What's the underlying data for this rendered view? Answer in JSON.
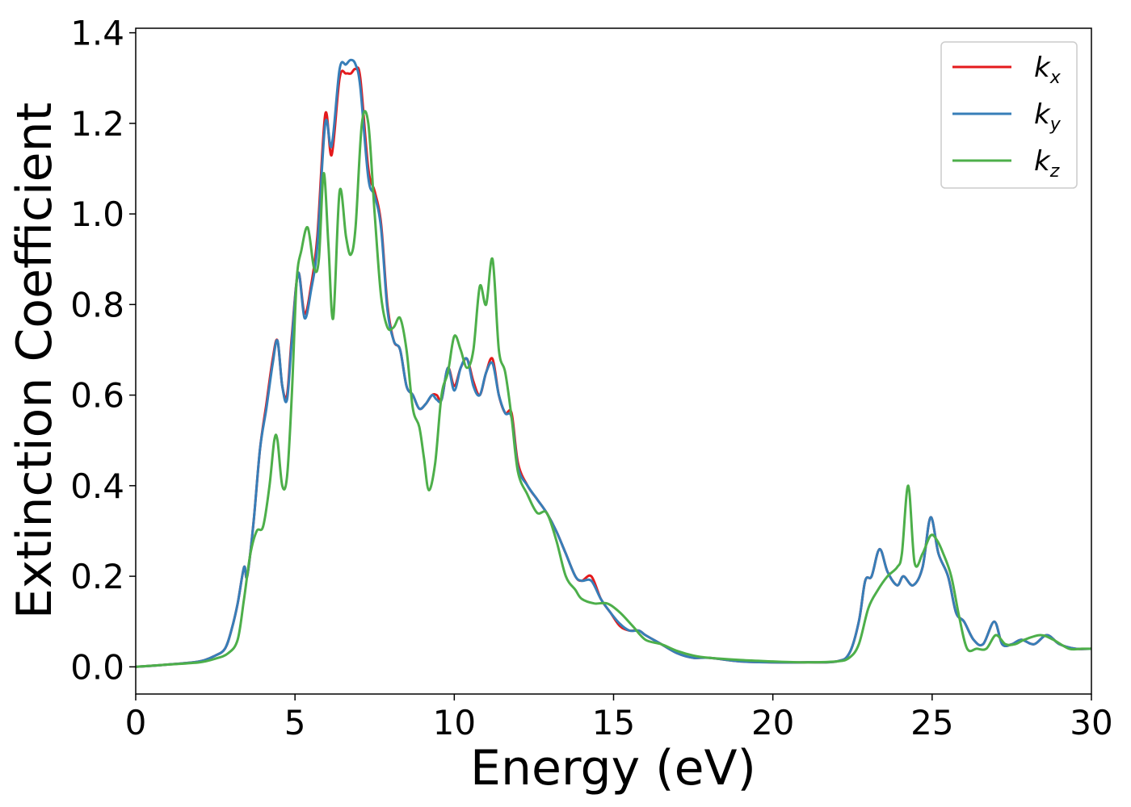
{
  "chart_data": {
    "type": "line",
    "xlabel": "Energy (eV)",
    "ylabel": "Extinction Coefficient",
    "xlim": [
      0,
      30
    ],
    "ylim": [
      -0.06,
      1.41
    ],
    "xticks": [
      "0",
      "5",
      "10",
      "15",
      "20",
      "25",
      "30"
    ],
    "yticks": [
      "0.0",
      "0.2",
      "0.4",
      "0.6",
      "0.8",
      "1.0",
      "1.2",
      "1.4"
    ],
    "grid": false,
    "legend_position": "top-right",
    "series": [
      {
        "name": "k",
        "subscript": "x",
        "color": "#e41a1c",
        "x": [
          0,
          1,
          2,
          2.5,
          2.8,
          3,
          3.2,
          3.4,
          3.5,
          3.7,
          3.9,
          4.1,
          4.3,
          4.45,
          4.6,
          4.75,
          4.9,
          5.1,
          5.3,
          5.5,
          5.7,
          5.95,
          6.15,
          6.4,
          6.6,
          6.75,
          6.9,
          7.05,
          7.3,
          7.5,
          7.7,
          7.9,
          8.1,
          8.3,
          8.5,
          8.7,
          8.9,
          9.1,
          9.3,
          9.45,
          9.6,
          9.8,
          10,
          10.2,
          10.4,
          10.6,
          10.8,
          11,
          11.2,
          11.4,
          11.6,
          11.8,
          12,
          12.3,
          12.6,
          12.9,
          13.2,
          13.5,
          13.8,
          14,
          14.3,
          14.6,
          14.9,
          15.2,
          15.5,
          15.8,
          16,
          16.5,
          17,
          17.5,
          18,
          19,
          20,
          21,
          22,
          22.4,
          22.7,
          22.9,
          23.1,
          23.35,
          23.6,
          23.9,
          24.1,
          24.4,
          24.7,
          24.95,
          25.2,
          25.5,
          25.75,
          26,
          26.3,
          26.6,
          26.95,
          27.2,
          27.5,
          27.8,
          28.2,
          28.6,
          29,
          29.5,
          30
        ],
        "values": [
          0,
          0.005,
          0.012,
          0.025,
          0.04,
          0.08,
          0.14,
          0.22,
          0.2,
          0.32,
          0.48,
          0.58,
          0.68,
          0.72,
          0.62,
          0.6,
          0.73,
          0.87,
          0.78,
          0.84,
          0.95,
          1.22,
          1.13,
          1.3,
          1.31,
          1.31,
          1.32,
          1.3,
          1.1,
          1.05,
          0.98,
          0.8,
          0.72,
          0.7,
          0.62,
          0.6,
          0.57,
          0.58,
          0.6,
          0.6,
          0.59,
          0.66,
          0.62,
          0.66,
          0.68,
          0.63,
          0.6,
          0.65,
          0.68,
          0.6,
          0.56,
          0.56,
          0.45,
          0.4,
          0.37,
          0.34,
          0.3,
          0.25,
          0.2,
          0.19,
          0.2,
          0.15,
          0.12,
          0.09,
          0.08,
          0.08,
          0.07,
          0.05,
          0.03,
          0.02,
          0.02,
          0.012,
          0.01,
          0.01,
          0.012,
          0.03,
          0.1,
          0.19,
          0.2,
          0.26,
          0.21,
          0.18,
          0.2,
          0.18,
          0.22,
          0.33,
          0.25,
          0.2,
          0.12,
          0.1,
          0.06,
          0.05,
          0.1,
          0.05,
          0.05,
          0.06,
          0.05,
          0.07,
          0.05,
          0.04,
          0.04
        ]
      },
      {
        "name": "k",
        "subscript": "y",
        "color": "#377eb8",
        "x": [
          0,
          1,
          2,
          2.5,
          2.8,
          3,
          3.2,
          3.4,
          3.5,
          3.7,
          3.9,
          4.1,
          4.3,
          4.45,
          4.6,
          4.75,
          4.9,
          5.1,
          5.3,
          5.5,
          5.7,
          5.95,
          6.15,
          6.4,
          6.6,
          6.75,
          6.9,
          7.05,
          7.3,
          7.5,
          7.7,
          7.9,
          8.1,
          8.3,
          8.5,
          8.7,
          8.9,
          9.1,
          9.3,
          9.45,
          9.6,
          9.8,
          10,
          10.2,
          10.4,
          10.6,
          10.8,
          11,
          11.2,
          11.4,
          11.6,
          11.8,
          12,
          12.3,
          12.6,
          12.9,
          13.2,
          13.5,
          13.8,
          14,
          14.3,
          14.6,
          14.9,
          15.2,
          15.5,
          15.8,
          16,
          16.5,
          17,
          17.5,
          18,
          19,
          20,
          21,
          22,
          22.4,
          22.7,
          22.9,
          23.1,
          23.35,
          23.6,
          23.9,
          24.1,
          24.4,
          24.7,
          24.95,
          25.2,
          25.5,
          25.75,
          26,
          26.3,
          26.6,
          26.95,
          27.2,
          27.5,
          27.8,
          28.2,
          28.6,
          29,
          29.5,
          30
        ],
        "values": [
          0,
          0.005,
          0.012,
          0.025,
          0.04,
          0.08,
          0.14,
          0.22,
          0.2,
          0.32,
          0.48,
          0.57,
          0.67,
          0.72,
          0.62,
          0.59,
          0.72,
          0.87,
          0.77,
          0.83,
          0.93,
          1.2,
          1.15,
          1.32,
          1.33,
          1.34,
          1.33,
          1.28,
          1.08,
          1.04,
          0.97,
          0.79,
          0.72,
          0.7,
          0.62,
          0.6,
          0.57,
          0.58,
          0.6,
          0.59,
          0.59,
          0.66,
          0.61,
          0.66,
          0.68,
          0.62,
          0.6,
          0.65,
          0.67,
          0.6,
          0.56,
          0.55,
          0.44,
          0.4,
          0.37,
          0.34,
          0.3,
          0.25,
          0.2,
          0.19,
          0.19,
          0.15,
          0.12,
          0.095,
          0.08,
          0.08,
          0.07,
          0.05,
          0.03,
          0.02,
          0.02,
          0.012,
          0.01,
          0.01,
          0.012,
          0.03,
          0.1,
          0.19,
          0.2,
          0.26,
          0.21,
          0.18,
          0.2,
          0.18,
          0.22,
          0.33,
          0.25,
          0.2,
          0.12,
          0.1,
          0.06,
          0.05,
          0.1,
          0.05,
          0.05,
          0.06,
          0.05,
          0.07,
          0.05,
          0.04,
          0.04
        ]
      },
      {
        "name": "k",
        "subscript": "z",
        "color": "#4daf4a",
        "x": [
          0,
          1,
          2,
          2.5,
          2.9,
          3.2,
          3.4,
          3.6,
          3.8,
          4,
          4.2,
          4.35,
          4.45,
          4.6,
          4.75,
          4.9,
          5.05,
          5.2,
          5.4,
          5.6,
          5.75,
          5.9,
          6.05,
          6.2,
          6.4,
          6.6,
          6.75,
          6.9,
          7.1,
          7.3,
          7.5,
          7.7,
          7.9,
          8.1,
          8.3,
          8.5,
          8.7,
          8.9,
          9.05,
          9.2,
          9.4,
          9.6,
          9.8,
          10,
          10.2,
          10.4,
          10.6,
          10.8,
          11,
          11.2,
          11.4,
          11.6,
          11.8,
          12,
          12.3,
          12.6,
          12.9,
          13.2,
          13.5,
          13.8,
          14,
          14.4,
          14.8,
          15.2,
          15.6,
          16,
          16.5,
          17,
          17.5,
          18,
          19,
          20,
          21,
          22,
          22.4,
          22.7,
          23,
          23.3,
          23.6,
          23.9,
          24.05,
          24.25,
          24.45,
          24.7,
          24.95,
          25.15,
          25.35,
          25.6,
          25.85,
          26.1,
          26.4,
          26.7,
          27,
          27.3,
          27.6,
          27.9,
          28.4,
          28.8,
          29.3,
          29.7,
          30
        ],
        "values": [
          0,
          0.005,
          0.01,
          0.018,
          0.03,
          0.06,
          0.15,
          0.25,
          0.3,
          0.31,
          0.4,
          0.5,
          0.5,
          0.4,
          0.42,
          0.6,
          0.85,
          0.92,
          0.97,
          0.88,
          0.9,
          1.09,
          0.93,
          0.77,
          1.05,
          0.95,
          0.91,
          0.97,
          1.2,
          1.2,
          1.0,
          0.82,
          0.75,
          0.75,
          0.77,
          0.7,
          0.57,
          0.53,
          0.46,
          0.39,
          0.45,
          0.6,
          0.65,
          0.73,
          0.7,
          0.66,
          0.7,
          0.84,
          0.8,
          0.9,
          0.7,
          0.65,
          0.55,
          0.43,
          0.38,
          0.34,
          0.34,
          0.28,
          0.2,
          0.17,
          0.15,
          0.14,
          0.14,
          0.12,
          0.09,
          0.06,
          0.05,
          0.035,
          0.025,
          0.02,
          0.015,
          0.012,
          0.01,
          0.012,
          0.02,
          0.05,
          0.13,
          0.17,
          0.2,
          0.22,
          0.25,
          0.4,
          0.23,
          0.25,
          0.29,
          0.28,
          0.25,
          0.2,
          0.11,
          0.04,
          0.04,
          0.04,
          0.07,
          0.05,
          0.05,
          0.06,
          0.07,
          0.06,
          0.04,
          0.04,
          0.04
        ]
      }
    ]
  }
}
